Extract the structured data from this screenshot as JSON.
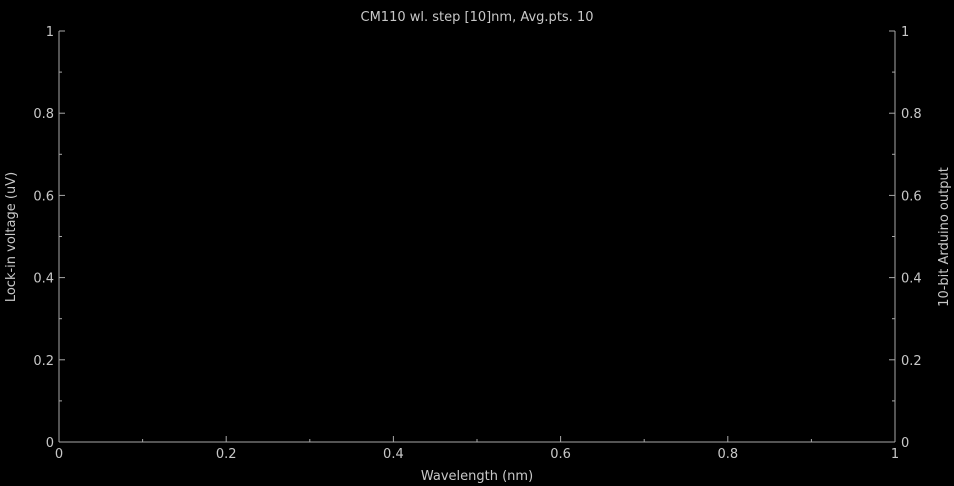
{
  "chart_data": {
    "type": "line",
    "title": "CM110 wl. step [10]nm, Avg.pts. 10",
    "xlabel": "Wavelength (nm)",
    "ylabel": "Lock-in voltage (uV)",
    "y2label": "10-bit Arduino output",
    "xlim": [
      0,
      1
    ],
    "ylim": [
      0,
      1
    ],
    "y2lim": [
      0,
      1
    ],
    "x_ticks": [
      "0",
      "0.2",
      "0.4",
      "0.6",
      "0.8",
      "1"
    ],
    "y_ticks": [
      "0",
      "0.2",
      "0.4",
      "0.6",
      "0.8",
      "1"
    ],
    "y2_ticks": [
      "0",
      "0.2",
      "0.4",
      "0.6",
      "0.8",
      "1"
    ],
    "grid": false,
    "series": []
  },
  "colors": {
    "background": "#000000",
    "axis": "#a8a8a8",
    "text": "#c8c8c8"
  }
}
